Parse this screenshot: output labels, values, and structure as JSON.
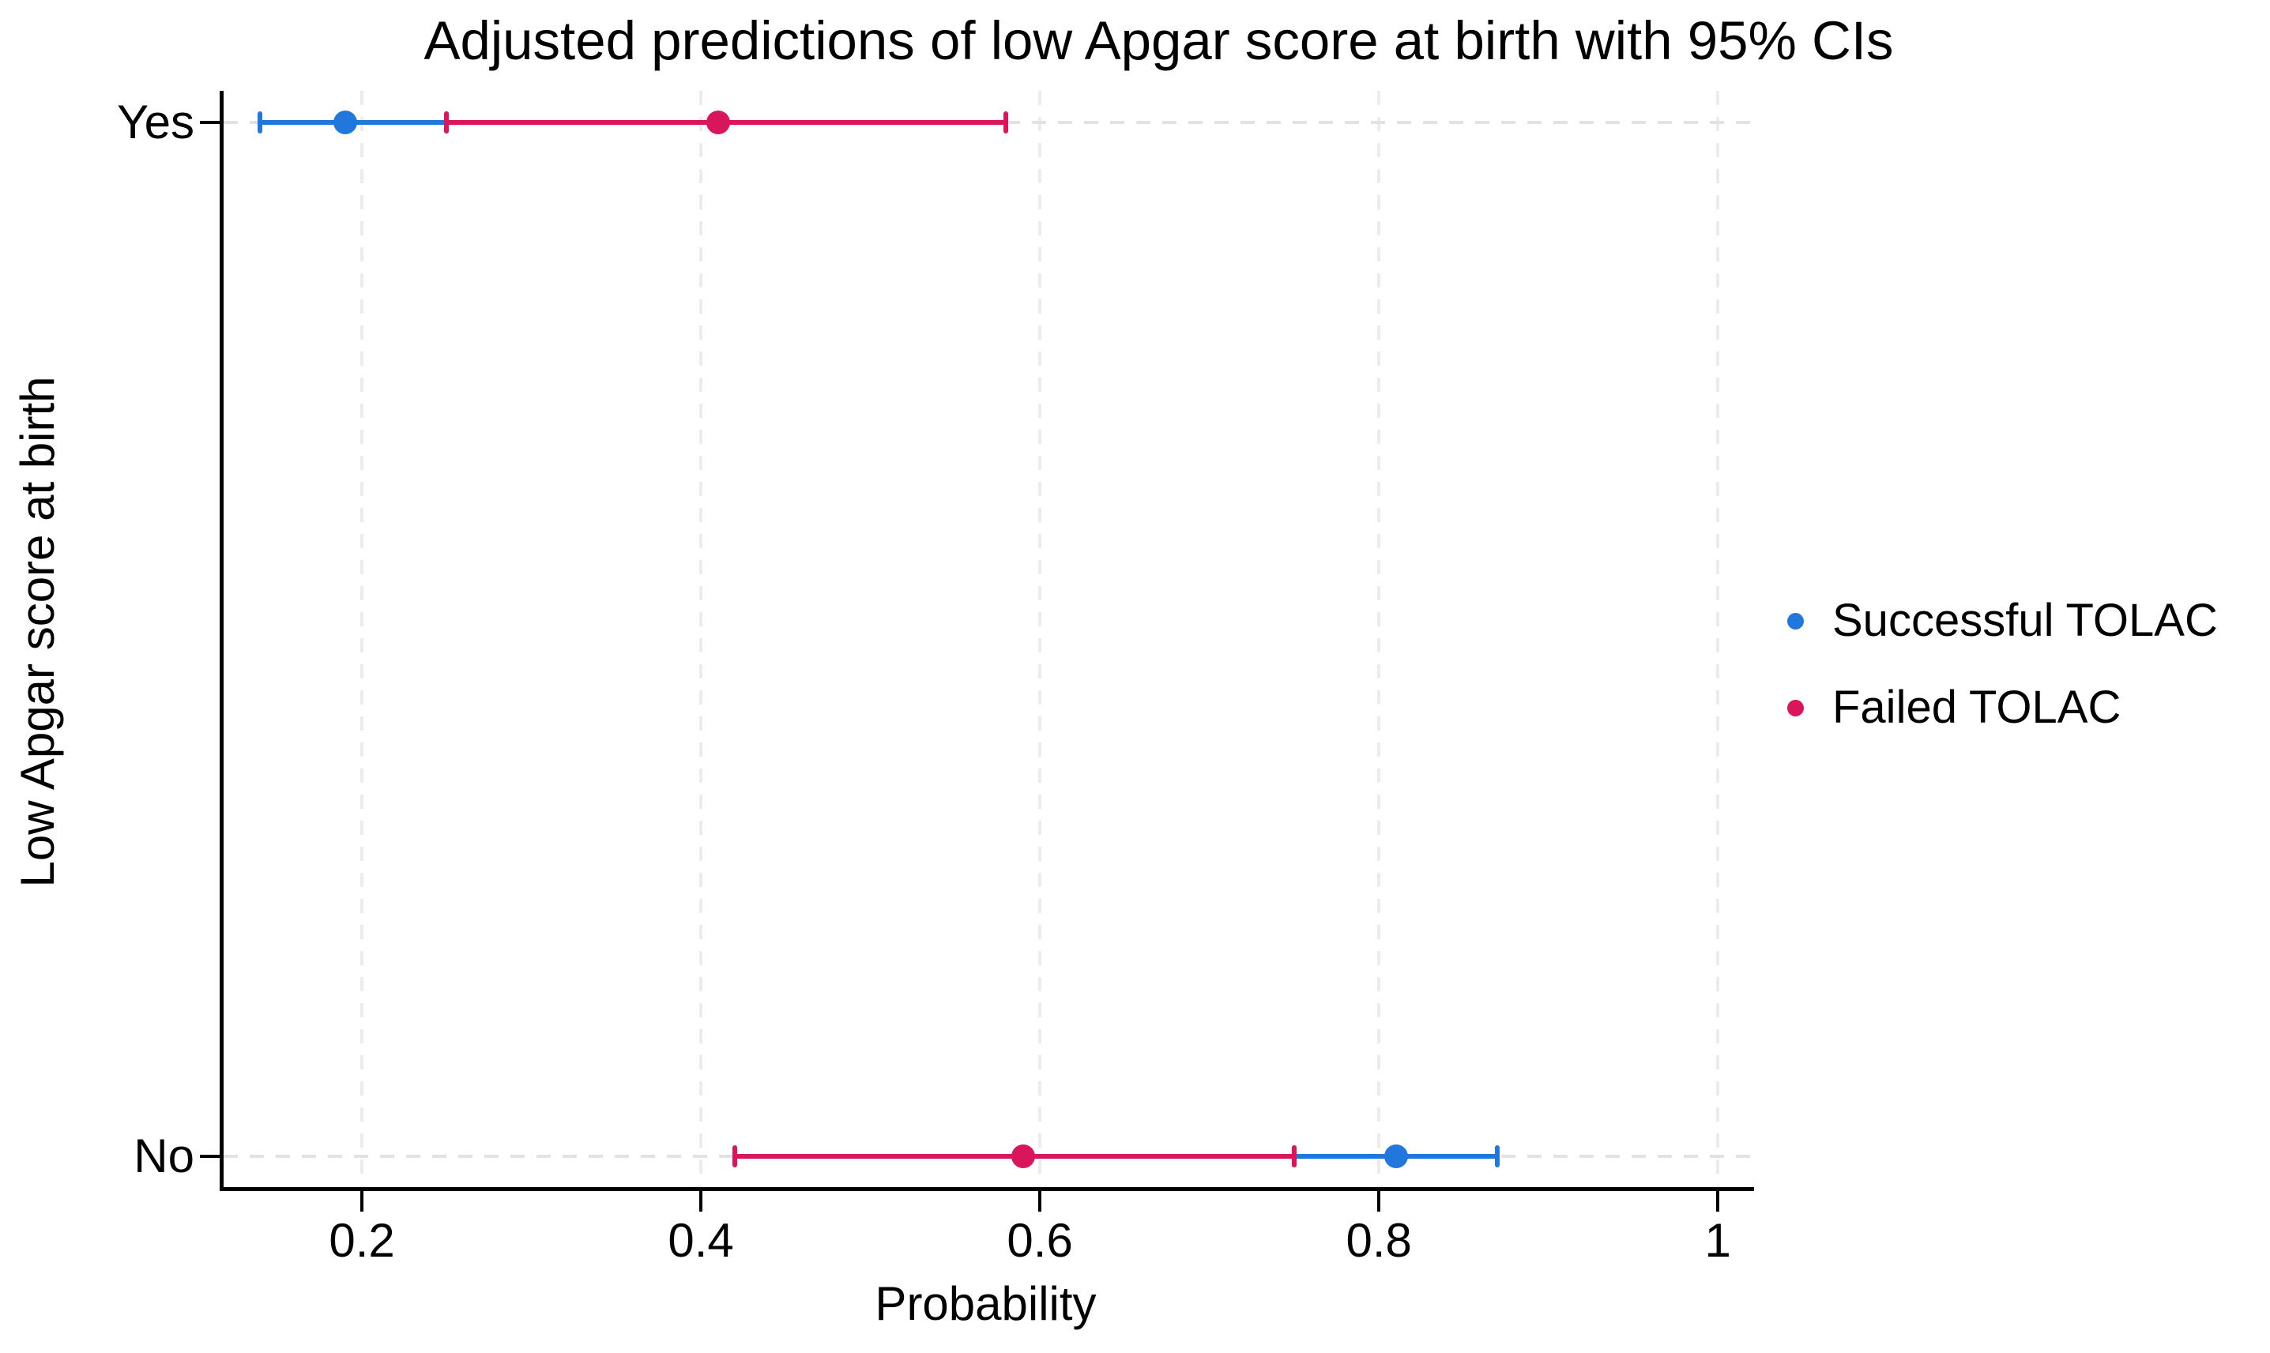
{
  "chart_data": {
    "type": "scatter",
    "variant": "adjusted-predictions-dot-plot-with-ci",
    "title": "Adjusted predictions of low Apgar score at birth with 95% CIs",
    "xlabel": "Probability",
    "ylabel": "Low Apgar score at birth",
    "ci_level": "95%",
    "categories": [
      "Yes",
      "No"
    ],
    "xlim": [
      0.117,
      1.019
    ],
    "xticks": [
      0.2,
      0.4,
      0.6,
      0.8,
      1
    ],
    "xtick_labels": [
      "0.2",
      "0.4",
      "0.6",
      "0.8",
      "1"
    ],
    "grid": {
      "vertical_dashed": true,
      "horizontal_dashed_at_categories": true,
      "vertical_color": "#ececec",
      "horizontal_color": "#e2e2e2"
    },
    "axis_color": "#000000",
    "background_color": "#ffffff",
    "legend": {
      "position": "right-middle",
      "entries": [
        "Successful TOLAC",
        "Failed TOLAC"
      ]
    },
    "series": [
      {
        "name": "Successful TOLAC",
        "color": "#2277dd",
        "points": [
          {
            "category": "Yes",
            "value": 0.19,
            "ci_low": 0.14,
            "ci_high": 0.25
          },
          {
            "category": "No",
            "value": 0.81,
            "ci_low": 0.75,
            "ci_high": 0.87
          }
        ]
      },
      {
        "name": "Failed TOLAC",
        "color": "#d9155c",
        "points": [
          {
            "category": "Yes",
            "value": 0.41,
            "ci_low": 0.25,
            "ci_high": 0.58
          },
          {
            "category": "No",
            "value": 0.59,
            "ci_low": 0.42,
            "ci_high": 0.75
          }
        ]
      }
    ]
  }
}
